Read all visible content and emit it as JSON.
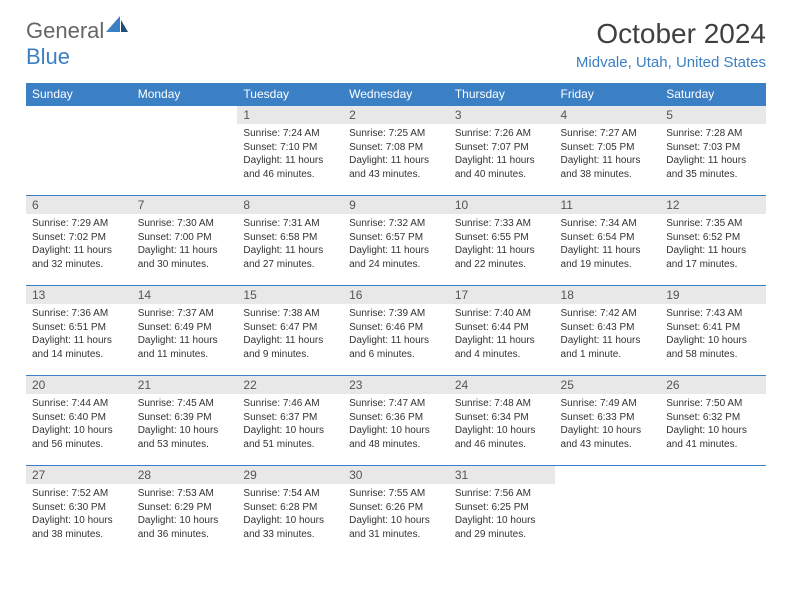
{
  "brand": {
    "general": "General",
    "blue": "Blue"
  },
  "title": "October 2024",
  "location": "Midvale, Utah, United States",
  "colors": {
    "accent": "#3b7fc4",
    "daynum_bg": "#e8e8e8",
    "text": "#333333",
    "title_text": "#404040"
  },
  "weekdays": [
    "Sunday",
    "Monday",
    "Tuesday",
    "Wednesday",
    "Thursday",
    "Friday",
    "Saturday"
  ],
  "leading_blanks": 2,
  "days": [
    {
      "n": 1,
      "sunrise": "7:24 AM",
      "sunset": "7:10 PM",
      "daylight": "11 hours and 46 minutes."
    },
    {
      "n": 2,
      "sunrise": "7:25 AM",
      "sunset": "7:08 PM",
      "daylight": "11 hours and 43 minutes."
    },
    {
      "n": 3,
      "sunrise": "7:26 AM",
      "sunset": "7:07 PM",
      "daylight": "11 hours and 40 minutes."
    },
    {
      "n": 4,
      "sunrise": "7:27 AM",
      "sunset": "7:05 PM",
      "daylight": "11 hours and 38 minutes."
    },
    {
      "n": 5,
      "sunrise": "7:28 AM",
      "sunset": "7:03 PM",
      "daylight": "11 hours and 35 minutes."
    },
    {
      "n": 6,
      "sunrise": "7:29 AM",
      "sunset": "7:02 PM",
      "daylight": "11 hours and 32 minutes."
    },
    {
      "n": 7,
      "sunrise": "7:30 AM",
      "sunset": "7:00 PM",
      "daylight": "11 hours and 30 minutes."
    },
    {
      "n": 8,
      "sunrise": "7:31 AM",
      "sunset": "6:58 PM",
      "daylight": "11 hours and 27 minutes."
    },
    {
      "n": 9,
      "sunrise": "7:32 AM",
      "sunset": "6:57 PM",
      "daylight": "11 hours and 24 minutes."
    },
    {
      "n": 10,
      "sunrise": "7:33 AM",
      "sunset": "6:55 PM",
      "daylight": "11 hours and 22 minutes."
    },
    {
      "n": 11,
      "sunrise": "7:34 AM",
      "sunset": "6:54 PM",
      "daylight": "11 hours and 19 minutes."
    },
    {
      "n": 12,
      "sunrise": "7:35 AM",
      "sunset": "6:52 PM",
      "daylight": "11 hours and 17 minutes."
    },
    {
      "n": 13,
      "sunrise": "7:36 AM",
      "sunset": "6:51 PM",
      "daylight": "11 hours and 14 minutes."
    },
    {
      "n": 14,
      "sunrise": "7:37 AM",
      "sunset": "6:49 PM",
      "daylight": "11 hours and 11 minutes."
    },
    {
      "n": 15,
      "sunrise": "7:38 AM",
      "sunset": "6:47 PM",
      "daylight": "11 hours and 9 minutes."
    },
    {
      "n": 16,
      "sunrise": "7:39 AM",
      "sunset": "6:46 PM",
      "daylight": "11 hours and 6 minutes."
    },
    {
      "n": 17,
      "sunrise": "7:40 AM",
      "sunset": "6:44 PM",
      "daylight": "11 hours and 4 minutes."
    },
    {
      "n": 18,
      "sunrise": "7:42 AM",
      "sunset": "6:43 PM",
      "daylight": "11 hours and 1 minute."
    },
    {
      "n": 19,
      "sunrise": "7:43 AM",
      "sunset": "6:41 PM",
      "daylight": "10 hours and 58 minutes."
    },
    {
      "n": 20,
      "sunrise": "7:44 AM",
      "sunset": "6:40 PM",
      "daylight": "10 hours and 56 minutes."
    },
    {
      "n": 21,
      "sunrise": "7:45 AM",
      "sunset": "6:39 PM",
      "daylight": "10 hours and 53 minutes."
    },
    {
      "n": 22,
      "sunrise": "7:46 AM",
      "sunset": "6:37 PM",
      "daylight": "10 hours and 51 minutes."
    },
    {
      "n": 23,
      "sunrise": "7:47 AM",
      "sunset": "6:36 PM",
      "daylight": "10 hours and 48 minutes."
    },
    {
      "n": 24,
      "sunrise": "7:48 AM",
      "sunset": "6:34 PM",
      "daylight": "10 hours and 46 minutes."
    },
    {
      "n": 25,
      "sunrise": "7:49 AM",
      "sunset": "6:33 PM",
      "daylight": "10 hours and 43 minutes."
    },
    {
      "n": 26,
      "sunrise": "7:50 AM",
      "sunset": "6:32 PM",
      "daylight": "10 hours and 41 minutes."
    },
    {
      "n": 27,
      "sunrise": "7:52 AM",
      "sunset": "6:30 PM",
      "daylight": "10 hours and 38 minutes."
    },
    {
      "n": 28,
      "sunrise": "7:53 AM",
      "sunset": "6:29 PM",
      "daylight": "10 hours and 36 minutes."
    },
    {
      "n": 29,
      "sunrise": "7:54 AM",
      "sunset": "6:28 PM",
      "daylight": "10 hours and 33 minutes."
    },
    {
      "n": 30,
      "sunrise": "7:55 AM",
      "sunset": "6:26 PM",
      "daylight": "10 hours and 31 minutes."
    },
    {
      "n": 31,
      "sunrise": "7:56 AM",
      "sunset": "6:25 PM",
      "daylight": "10 hours and 29 minutes."
    }
  ],
  "labels": {
    "sunrise": "Sunrise:",
    "sunset": "Sunset:",
    "daylight": "Daylight:"
  }
}
